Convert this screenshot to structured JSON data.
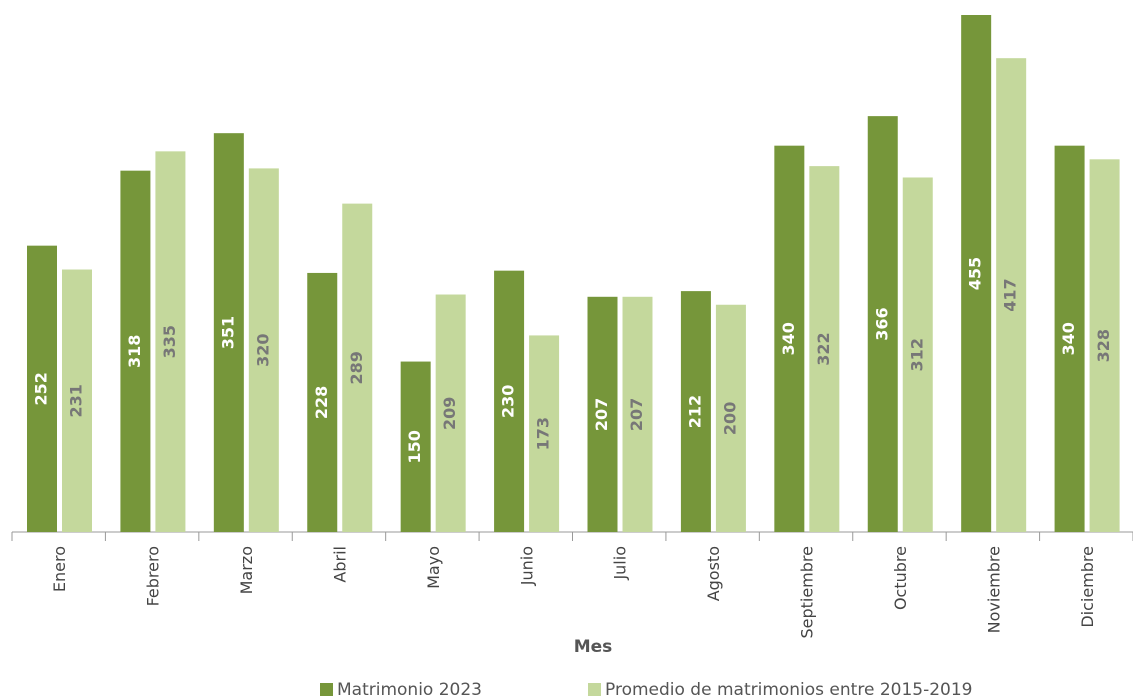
{
  "chart_data": {
    "type": "bar",
    "xlabel": "Mes",
    "categories": [
      "Enero",
      "Febrero",
      "Marzo",
      "Abril",
      "Mayo",
      "Junio",
      "Julio",
      "Agosto",
      "Septiembre",
      "Octubre",
      "Noviembre",
      "Diciembre"
    ],
    "series": [
      {
        "name": "Matrimonio 2023",
        "color": "#76963a",
        "values": [
          252,
          318,
          351,
          228,
          150,
          230,
          207,
          212,
          340,
          366,
          455,
          340
        ]
      },
      {
        "name": "Promedio de matrimonios entre 2015-2019",
        "color": "#c4d89c",
        "values": [
          231,
          335,
          320,
          289,
          209,
          173,
          207,
          200,
          322,
          312,
          417,
          328
        ]
      }
    ]
  }
}
